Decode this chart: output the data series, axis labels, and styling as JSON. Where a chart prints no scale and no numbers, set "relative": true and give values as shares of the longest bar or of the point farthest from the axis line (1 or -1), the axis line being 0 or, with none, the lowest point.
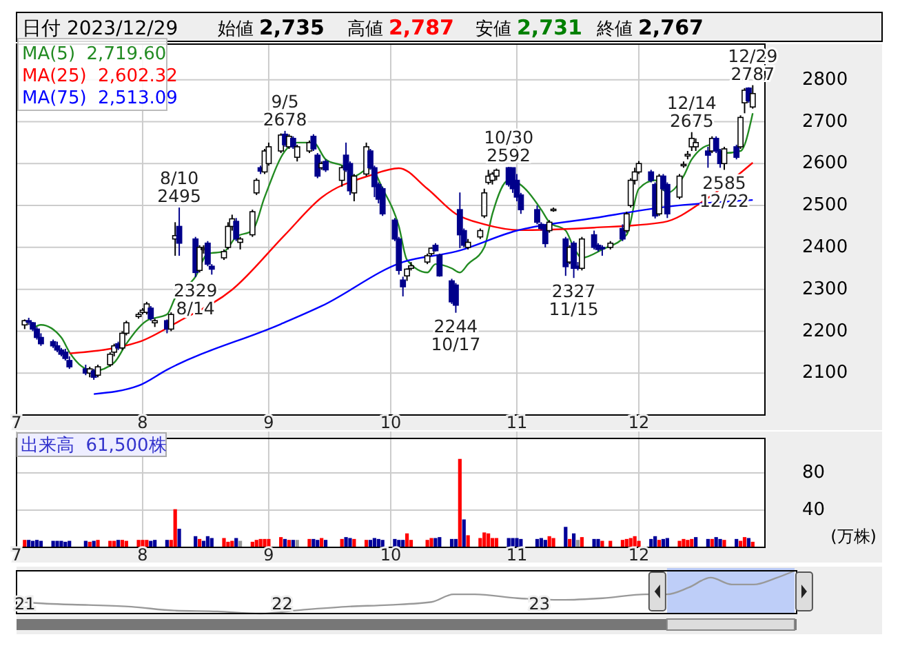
{
  "chart_data": [
    {
      "type": "candlestick",
      "title": "日付 2023/12/29",
      "annotations": [
        "始値 2,735",
        "高値 2,787",
        "安値 2,731",
        "終値 2,767",
        {
          "text": "8/10\n2495",
          "x": "2023-08-10",
          "y": 2495
        },
        {
          "text": "2329\n8/14",
          "x": "2023-08-14",
          "y": 2329
        },
        {
          "text": "9/5\n2678",
          "x": "2023-09-05",
          "y": 2678
        },
        {
          "text": "2244\n10/17",
          "x": "2023-10-17",
          "y": 2244
        },
        {
          "text": "10/30\n2592",
          "x": "2023-10-30",
          "y": 2592
        },
        {
          "text": "2327\n11/15",
          "x": "2023-11-15",
          "y": 2327
        },
        {
          "text": "12/14\n2675",
          "x": "2023-12-14",
          "y": 2675
        },
        {
          "text": "2585\n12/22",
          "x": "2023-12-22",
          "y": 2585
        },
        {
          "text": "12/29\n2787",
          "x": "2023-12-29",
          "y": 2787
        }
      ],
      "x": [
        "2023-07-03",
        "2023-07-04",
        "2023-07-05",
        "2023-07-06",
        "2023-07-07",
        "2023-07-10",
        "2023-07-11",
        "2023-07-12",
        "2023-07-13",
        "2023-07-14",
        "2023-07-18",
        "2023-07-19",
        "2023-07-20",
        "2023-07-21",
        "2023-07-24",
        "2023-07-25",
        "2023-07-26",
        "2023-07-27",
        "2023-07-28",
        "2023-07-31",
        "2023-08-01",
        "2023-08-02",
        "2023-08-03",
        "2023-08-04",
        "2023-08-07",
        "2023-08-08",
        "2023-08-09",
        "2023-08-10",
        "2023-08-14",
        "2023-08-15",
        "2023-08-16",
        "2023-08-17",
        "2023-08-18",
        "2023-08-21",
        "2023-08-22",
        "2023-08-23",
        "2023-08-24",
        "2023-08-25",
        "2023-08-28",
        "2023-08-29",
        "2023-08-30",
        "2023-08-31",
        "2023-09-01",
        "2023-09-04",
        "2023-09-05",
        "2023-09-06",
        "2023-09-07",
        "2023-09-08",
        "2023-09-11",
        "2023-09-12",
        "2023-09-13",
        "2023-09-14",
        "2023-09-15",
        "2023-09-19",
        "2023-09-20",
        "2023-09-21",
        "2023-09-22",
        "2023-09-25",
        "2023-09-26",
        "2023-09-27",
        "2023-09-28",
        "2023-09-29",
        "2023-10-02",
        "2023-10-03",
        "2023-10-04",
        "2023-10-05",
        "2023-10-06",
        "2023-10-10",
        "2023-10-11",
        "2023-10-12",
        "2023-10-13",
        "2023-10-16",
        "2023-10-17",
        "2023-10-18",
        "2023-10-19",
        "2023-10-20",
        "2023-10-23",
        "2023-10-24",
        "2023-10-25",
        "2023-10-26",
        "2023-10-27",
        "2023-10-30",
        "2023-10-31",
        "2023-11-01",
        "2023-11-02",
        "2023-11-06",
        "2023-11-07",
        "2023-11-08",
        "2023-11-09",
        "2023-11-10",
        "2023-11-13",
        "2023-11-14",
        "2023-11-15",
        "2023-11-16",
        "2023-11-17",
        "2023-11-20",
        "2023-11-21",
        "2023-11-22",
        "2023-11-24",
        "2023-11-27",
        "2023-11-28",
        "2023-11-29",
        "2023-11-30",
        "2023-12-01",
        "2023-12-04",
        "2023-12-05",
        "2023-12-06",
        "2023-12-07",
        "2023-12-08",
        "2023-12-11",
        "2023-12-12",
        "2023-12-13",
        "2023-12-14",
        "2023-12-15",
        "2023-12-18",
        "2023-12-19",
        "2023-12-20",
        "2023-12-21",
        "2023-12-22",
        "2023-12-25",
        "2023-12-26",
        "2023-12-27",
        "2023-12-28",
        "2023-12-29"
      ],
      "ohlc": [
        [
          2215,
          2228,
          2205,
          2225
        ],
        [
          2225,
          2232,
          2215,
          2222
        ],
        [
          2220,
          2222,
          2200,
          2205
        ],
        [
          2205,
          2210,
          2180,
          2185
        ],
        [
          2185,
          2195,
          2165,
          2170
        ],
        [
          2175,
          2180,
          2160,
          2165
        ],
        [
          2165,
          2175,
          2150,
          2155
        ],
        [
          2155,
          2160,
          2140,
          2145
        ],
        [
          2150,
          2158,
          2130,
          2135
        ],
        [
          2130,
          2140,
          2110,
          2115
        ],
        [
          2110,
          2120,
          2095,
          2100
        ],
        [
          2100,
          2115,
          2090,
          2110
        ],
        [
          2105,
          2110,
          2084,
          2090
        ],
        [
          2095,
          2120,
          2090,
          2115
        ],
        [
          2120,
          2150,
          2115,
          2145
        ],
        [
          2150,
          2170,
          2140,
          2165
        ],
        [
          2170,
          2175,
          2155,
          2160
        ],
        [
          2160,
          2200,
          2155,
          2195
        ],
        [
          2195,
          2225,
          2190,
          2220
        ],
        [
          2235,
          2245,
          2230,
          2240
        ],
        [
          2245,
          2255,
          2240,
          2250
        ],
        [
          2245,
          2270,
          2240,
          2265
        ],
        [
          2255,
          2260,
          2225,
          2230
        ],
        [
          2220,
          2230,
          2210,
          2225
        ],
        [
          2225,
          2228,
          2195,
          2205
        ],
        [
          2205,
          2245,
          2200,
          2240
        ],
        [
          2420,
          2460,
          2380,
          2428
        ],
        [
          2450,
          2495,
          2380,
          2410
        ],
        [
          2420,
          2425,
          2329,
          2340
        ],
        [
          2345,
          2405,
          2340,
          2400
        ],
        [
          2395,
          2405,
          2385,
          2398
        ],
        [
          2410,
          2415,
          2355,
          2360
        ],
        [
          2355,
          2360,
          2335,
          2348
        ],
        [
          2375,
          2395,
          2370,
          2390
        ],
        [
          2400,
          2460,
          2395,
          2450
        ],
        [
          2450,
          2478,
          2440,
          2468
        ],
        [
          2462,
          2470,
          2415,
          2420
        ],
        [
          2412,
          2425,
          2395,
          2420
        ],
        [
          2430,
          2490,
          2425,
          2485
        ],
        [
          2530,
          2565,
          2525,
          2560
        ],
        [
          2590,
          2595,
          2575,
          2582
        ],
        [
          2580,
          2635,
          2575,
          2630
        ],
        [
          2600,
          2650,
          2595,
          2640
        ],
        [
          2630,
          2672,
          2625,
          2668
        ],
        [
          2670,
          2678,
          2640,
          2645
        ],
        [
          2640,
          2670,
          2635,
          2665
        ],
        [
          2660,
          2665,
          2635,
          2640
        ],
        [
          2615,
          2645,
          2605,
          2640
        ],
        [
          2630,
          2655,
          2625,
          2650
        ],
        [
          2665,
          2670,
          2630,
          2635
        ],
        [
          2620,
          2625,
          2565,
          2570
        ],
        [
          2590,
          2605,
          2585,
          2600
        ],
        [
          2605,
          2610,
          2580,
          2585
        ],
        [
          2560,
          2595,
          2545,
          2590
        ],
        [
          2620,
          2650,
          2580,
          2585
        ],
        [
          2600,
          2605,
          2525,
          2535
        ],
        [
          2530,
          2575,
          2510,
          2570
        ],
        [
          2575,
          2650,
          2570,
          2640
        ],
        [
          2630,
          2635,
          2585,
          2590
        ],
        [
          2590,
          2595,
          2520,
          2545
        ],
        [
          2550,
          2555,
          2505,
          2515
        ],
        [
          2540,
          2545,
          2475,
          2480
        ],
        [
          2465,
          2470,
          2415,
          2420
        ],
        [
          2420,
          2425,
          2335,
          2345
        ],
        [
          2322,
          2330,
          2283,
          2306
        ],
        [
          2332,
          2350,
          2320,
          2348
        ],
        [
          2350,
          2365,
          2345,
          2356
        ],
        [
          2365,
          2385,
          2360,
          2380
        ],
        [
          2385,
          2400,
          2380,
          2398
        ],
        [
          2405,
          2410,
          2390,
          2392
        ],
        [
          2382,
          2385,
          2330,
          2332
        ],
        [
          2320,
          2325,
          2265,
          2270
        ],
        [
          2310,
          2315,
          2244,
          2262
        ],
        [
          2490,
          2531,
          2398,
          2430
        ],
        [
          2440,
          2445,
          2400,
          2405
        ],
        [
          2400,
          2420,
          2395,
          2412
        ],
        [
          2425,
          2445,
          2420,
          2440
        ],
        [
          2475,
          2540,
          2470,
          2530
        ],
        [
          2555,
          2585,
          2550,
          2570
        ],
        [
          2560,
          2580,
          2550,
          2575
        ],
        [
          2570,
          2588,
          2560,
          2584
        ],
        [
          2590,
          2592,
          2545,
          2550
        ],
        [
          2590,
          2590,
          2530,
          2540
        ],
        [
          2560,
          2575,
          2510,
          2520
        ],
        [
          2525,
          2530,
          2480,
          2490
        ],
        [
          2490,
          2500,
          2455,
          2460
        ],
        [
          2455,
          2460,
          2440,
          2445
        ],
        [
          2453,
          2455,
          2400,
          2409
        ],
        [
          2440,
          2465,
          2435,
          2460
        ],
        [
          2488,
          2495,
          2485,
          2491
        ],
        [
          2420,
          2425,
          2332,
          2354
        ],
        [
          2365,
          2405,
          2360,
          2400
        ],
        [
          2410,
          2415,
          2327,
          2350
        ],
        [
          2355,
          2365,
          2345,
          2350
        ],
        [
          2350,
          2425,
          2345,
          2420
        ],
        [
          2430,
          2440,
          2395,
          2400
        ],
        [
          2405,
          2410,
          2390,
          2395
        ],
        [
          2400,
          2405,
          2380,
          2398
        ],
        [
          2400,
          2415,
          2395,
          2410
        ],
        [
          2445,
          2455,
          2415,
          2420
        ],
        [
          2440,
          2485,
          2435,
          2480
        ],
        [
          2500,
          2565,
          2495,
          2560
        ],
        [
          2560,
          2590,
          2550,
          2580
        ],
        [
          2580,
          2606,
          2575,
          2600
        ],
        [
          2580,
          2585,
          2555,
          2560
        ],
        [
          2550,
          2555,
          2469,
          2475
        ],
        [
          2480,
          2575,
          2475,
          2570
        ],
        [
          2570,
          2575,
          2535,
          2540
        ],
        [
          2550,
          2555,
          2470,
          2480
        ],
        [
          2520,
          2575,
          2515,
          2570
        ],
        [
          2595,
          2605,
          2590,
          2598
        ],
        [
          2618,
          2630,
          2610,
          2622
        ],
        [
          2640,
          2675,
          2630,
          2660
        ],
        [
          2640,
          2660,
          2630,
          2650
        ],
        [
          2630,
          2640,
          2590,
          2620
        ],
        [
          2630,
          2665,
          2625,
          2660
        ],
        [
          2660,
          2665,
          2625,
          2630
        ],
        [
          2630,
          2635,
          2590,
          2600
        ],
        [
          2600,
          2640,
          2585,
          2635
        ],
        [
          2640,
          2645,
          2610,
          2615
        ],
        [
          2640,
          2715,
          2635,
          2710
        ],
        [
          2745,
          2780,
          2720,
          2775
        ],
        [
          2780,
          2782,
          2745,
          2750
        ],
        [
          2735,
          2787,
          2731,
          2767
        ]
      ],
      "series": [
        {
          "type": "line",
          "name": "MA(5)  2,719.60",
          "color": "#228b22",
          "x": [
            "2023-07-05",
            "2023-07-07",
            "2023-07-12",
            "2023-07-14",
            "2023-07-20",
            "2023-07-25",
            "2023-07-28",
            "2023-08-02",
            "2023-08-07",
            "2023-08-09",
            "2023-08-14",
            "2023-08-17",
            "2023-08-21",
            "2023-08-24",
            "2023-08-28",
            "2023-08-31",
            "2023-09-05",
            "2023-09-08",
            "2023-09-12",
            "2023-09-15",
            "2023-09-20",
            "2023-09-22",
            "2023-09-26",
            "2023-09-29",
            "2023-10-03",
            "2023-10-05",
            "2023-10-10",
            "2023-10-12",
            "2023-10-16",
            "2023-10-18",
            "2023-10-20",
            "2023-10-24",
            "2023-10-26",
            "2023-10-30",
            "2023-11-01",
            "2023-11-07",
            "2023-11-09",
            "2023-11-13",
            "2023-11-15",
            "2023-11-17",
            "2023-11-22",
            "2023-11-28",
            "2023-12-01",
            "2023-12-05",
            "2023-12-08",
            "2023-12-12",
            "2023-12-14",
            "2023-12-19",
            "2023-12-22",
            "2023-12-26",
            "2023-12-29"
          ],
          "values": [
            2207,
            2215,
            2185,
            2150,
            2105,
            2125,
            2170,
            2225,
            2240,
            2280,
            2330,
            2385,
            2390,
            2425,
            2440,
            2520,
            2630,
            2650,
            2650,
            2610,
            2590,
            2570,
            2590,
            2540,
            2450,
            2370,
            2340,
            2360,
            2350,
            2340,
            2360,
            2400,
            2480,
            2560,
            2555,
            2490,
            2460,
            2440,
            2400,
            2375,
            2395,
            2430,
            2540,
            2560,
            2530,
            2570,
            2610,
            2645,
            2625,
            2630,
            2720
          ]
        },
        {
          "type": "line",
          "name": "MA(25)  2,602.32",
          "color": "#ff0000",
          "x": [
            "2023-07-14",
            "2023-07-31",
            "2023-08-10",
            "2023-08-23",
            "2023-09-05",
            "2023-09-14",
            "2023-09-26",
            "2023-10-03",
            "2023-10-10",
            "2023-10-17",
            "2023-10-24",
            "2023-11-02",
            "2023-11-20",
            "2023-12-07",
            "2023-12-18",
            "2023-12-29"
          ],
          "values": [
            2147,
            2174,
            2224,
            2299,
            2430,
            2519,
            2572,
            2589,
            2540,
            2480,
            2455,
            2441,
            2447,
            2460,
            2518,
            2602
          ]
        },
        {
          "type": "line",
          "name": "MA(75)  2,513.09",
          "color": "#0000ff",
          "x": [
            "2023-07-20",
            "2023-07-31",
            "2023-08-07",
            "2023-09-04",
            "2023-09-14",
            "2023-10-04",
            "2023-10-17",
            "2023-11-01",
            "2023-11-20",
            "2023-12-08",
            "2023-12-29"
          ],
          "values": [
            2050,
            2070,
            2108,
            2217,
            2260,
            2365,
            2390,
            2440,
            2470,
            2497,
            2513
          ]
        }
      ],
      "xlim": [
        "2023-07-01",
        "2024-01-01"
      ],
      "xticks": [
        {
          "value": "2023-07-01",
          "label": "7"
        },
        {
          "value": "2023-08-01",
          "label": "8"
        },
        {
          "value": "2023-09-01",
          "label": "9"
        },
        {
          "value": "2023-10-01",
          "label": "10"
        },
        {
          "value": "2023-11-01",
          "label": "11"
        },
        {
          "value": "2023-12-01",
          "label": "12"
        }
      ],
      "ylim": [
        2000,
        2885
      ],
      "yticks": [
        2100,
        2200,
        2300,
        2400,
        2500,
        2600,
        2700,
        2800
      ],
      "grid": true,
      "legend": "top left"
    },
    {
      "type": "bar",
      "title": "出来高  61,500株",
      "ylabel": "(万株)",
      "x": [
        "2023-07-03",
        "2023-07-04",
        "2023-07-05",
        "2023-07-06",
        "2023-07-07",
        "2023-07-10",
        "2023-07-11",
        "2023-07-12",
        "2023-07-13",
        "2023-07-14",
        "2023-07-18",
        "2023-07-19",
        "2023-07-20",
        "2023-07-21",
        "2023-07-24",
        "2023-07-25",
        "2023-07-26",
        "2023-07-27",
        "2023-07-28",
        "2023-07-31",
        "2023-08-01",
        "2023-08-02",
        "2023-08-03",
        "2023-08-04",
        "2023-08-07",
        "2023-08-08",
        "2023-08-09",
        "2023-08-10",
        "2023-08-14",
        "2023-08-15",
        "2023-08-16",
        "2023-08-17",
        "2023-08-18",
        "2023-08-21",
        "2023-08-22",
        "2023-08-23",
        "2023-08-24",
        "2023-08-25",
        "2023-08-28",
        "2023-08-29",
        "2023-08-30",
        "2023-08-31",
        "2023-09-01",
        "2023-09-04",
        "2023-09-05",
        "2023-09-06",
        "2023-09-07",
        "2023-09-08",
        "2023-09-11",
        "2023-09-12",
        "2023-09-13",
        "2023-09-14",
        "2023-09-15",
        "2023-09-19",
        "2023-09-20",
        "2023-09-21",
        "2023-09-22",
        "2023-09-25",
        "2023-09-26",
        "2023-09-27",
        "2023-09-28",
        "2023-09-29",
        "2023-10-02",
        "2023-10-03",
        "2023-10-04",
        "2023-10-05",
        "2023-10-06",
        "2023-10-10",
        "2023-10-11",
        "2023-10-12",
        "2023-10-13",
        "2023-10-16",
        "2023-10-17",
        "2023-10-18",
        "2023-10-19",
        "2023-10-20",
        "2023-10-23",
        "2023-10-24",
        "2023-10-25",
        "2023-10-26",
        "2023-10-27",
        "2023-10-30",
        "2023-10-31",
        "2023-11-01",
        "2023-11-02",
        "2023-11-06",
        "2023-11-07",
        "2023-11-08",
        "2023-11-09",
        "2023-11-10",
        "2023-11-13",
        "2023-11-14",
        "2023-11-15",
        "2023-11-16",
        "2023-11-17",
        "2023-11-20",
        "2023-11-21",
        "2023-11-22",
        "2023-11-24",
        "2023-11-27",
        "2023-11-28",
        "2023-11-29",
        "2023-11-30",
        "2023-12-01",
        "2023-12-04",
        "2023-12-05",
        "2023-12-06",
        "2023-12-07",
        "2023-12-08",
        "2023-12-11",
        "2023-12-12",
        "2023-12-13",
        "2023-12-14",
        "2023-12-15",
        "2023-12-18",
        "2023-12-19",
        "2023-12-20",
        "2023-12-21",
        "2023-12-22",
        "2023-12-25",
        "2023-12-26",
        "2023-12-27",
        "2023-12-28",
        "2023-12-29"
      ],
      "values": [
        8,
        8,
        7,
        8,
        7,
        7,
        7,
        7,
        6,
        7,
        7,
        6,
        7,
        8,
        7,
        7,
        8,
        8,
        7,
        8,
        8,
        8,
        7,
        8,
        8,
        8,
        41,
        20,
        12,
        9,
        7,
        12,
        10,
        10,
        6,
        7,
        10,
        7,
        6,
        8,
        9,
        9,
        9,
        11,
        9,
        8,
        8,
        8,
        9,
        9,
        8,
        10,
        8,
        9,
        11,
        10,
        9,
        8,
        8,
        10,
        9,
        8,
        9,
        8,
        8,
        15,
        8,
        8,
        10,
        10,
        11,
        9,
        9,
        95,
        30,
        13,
        10,
        16,
        15,
        10,
        10,
        10,
        10,
        10,
        9,
        9,
        10,
        8,
        12,
        10,
        22,
        9,
        15,
        8,
        11,
        9,
        9,
        7,
        7,
        8,
        9,
        10,
        12,
        7,
        9,
        12,
        8,
        9,
        10,
        7,
        9,
        8,
        9,
        11,
        9,
        9,
        11,
        9,
        8,
        9,
        7,
        11,
        10,
        6
      ],
      "colors": [
        "#ff0000",
        "#000099",
        "#000099",
        "#000099",
        "#000099",
        "#000099",
        "#000099",
        "#000099",
        "#000099",
        "#000099",
        "#000099",
        "#ff0000",
        "#000099",
        "#ff0000",
        "#ff0000",
        "#ff0000",
        "#000099",
        "#ff0000",
        "#ff0000",
        "#ff0000",
        "#ff0000",
        "#ff0000",
        "#000099",
        "#000099",
        "#000099",
        "#ff0000",
        "#ff0000",
        "#000099",
        "#000099",
        "#ff0000",
        "#000099",
        "#000099",
        "#000099",
        "#ff0000",
        "#ff0000",
        "#ff0000",
        "#000099",
        "#999999",
        "#ff0000",
        "#ff0000",
        "#ff0000",
        "#ff0000",
        "#ff0000",
        "#ff0000",
        "#000099",
        "#ff0000",
        "#000099",
        "#999999",
        "#ff0000",
        "#000099",
        "#000099",
        "#ff0000",
        "#000099",
        "#ff0000",
        "#000099",
        "#000099",
        "#ff0000",
        "#ff0000",
        "#000099",
        "#000099",
        "#000099",
        "#000099",
        "#000099",
        "#000099",
        "#000099",
        "#ff0000",
        "#ff0000",
        "#ff0000",
        "#ff0000",
        "#000099",
        "#000099",
        "#000099",
        "#000099",
        "#ff0000",
        "#000099",
        "#ff0000",
        "#ff0000",
        "#ff0000",
        "#ff0000",
        "#ff0000",
        "#ff0000",
        "#000099",
        "#000099",
        "#000099",
        "#000099",
        "#000099",
        "#000099",
        "#000099",
        "#ff0000",
        "#ff0000",
        "#000099",
        "#ff0000",
        "#000099",
        "#999999",
        "#ff0000",
        "#000099",
        "#000099",
        "#ff0000",
        "#ff0000",
        "#ff0000",
        "#ff0000",
        "#ff0000",
        "#ff0000",
        "#ff0000",
        "#000099",
        "#000099",
        "#ff0000",
        "#000099",
        "#000099",
        "#ff0000",
        "#ff0000",
        "#ff0000",
        "#ff0000",
        "#000099",
        "#000099",
        "#ff0000",
        "#000099",
        "#000099",
        "#ff0000",
        "#000099",
        "#ff0000",
        "#ff0000",
        "#000099",
        "#ff0000"
      ],
      "xlim": [
        "2023-07-01",
        "2024-01-01"
      ],
      "xticks": [
        {
          "value": "2023-07-01",
          "label": "7"
        },
        {
          "value": "2023-08-01",
          "label": "8"
        },
        {
          "value": "2023-09-01",
          "label": "9"
        },
        {
          "value": "2023-10-01",
          "label": "10"
        },
        {
          "value": "2023-11-01",
          "label": "11"
        },
        {
          "value": "2023-12-01",
          "label": "12"
        }
      ],
      "ylim": [
        0,
        117
      ],
      "yticks": [
        40,
        80
      ],
      "grid": true
    },
    {
      "type": "line",
      "relative": true,
      "series": [
        {
          "color": "#999999",
          "x": [
            "2020-12-25",
            "2021-02-01",
            "2021-04-01",
            "2021-06-01",
            "2021-08-01",
            "2021-10-01",
            "2021-12-01",
            "2022-02-01",
            "2022-04-01",
            "2022-06-01",
            "2022-08-01",
            "2022-09-01",
            "2022-10-01",
            "2022-12-01",
            "2023-02-01",
            "2023-04-01",
            "2023-06-01",
            "2023-07-01",
            "2023-08-01",
            "2023-09-01",
            "2023-10-01",
            "2023-11-01",
            "2023-12-01",
            "2023-12-29"
          ],
          "values": [
            0.27,
            0.23,
            0.2,
            0.16,
            0.07,
            0.05,
            0,
            0.09,
            0.16,
            0.2,
            0.27,
            0.45,
            0.45,
            0.36,
            0.32,
            0.36,
            0.45,
            0.45,
            0.61,
            0.84,
            0.68,
            0.68,
            0.82,
            1
          ]
        }
      ],
      "xlim": [
        "2020-12-20",
        "2024-01-01"
      ],
      "xticks": [
        {
          "value": "2021-01-01",
          "label": "21"
        },
        {
          "value": "2022-01-01",
          "label": "22"
        },
        {
          "value": "2023-01-01",
          "label": "23"
        }
      ],
      "bands": [
        {
          "axis": "x",
          "from": "2023-07-01",
          "to": "2023-12-29",
          "color": "#b3c6f7"
        }
      ]
    }
  ]
}
